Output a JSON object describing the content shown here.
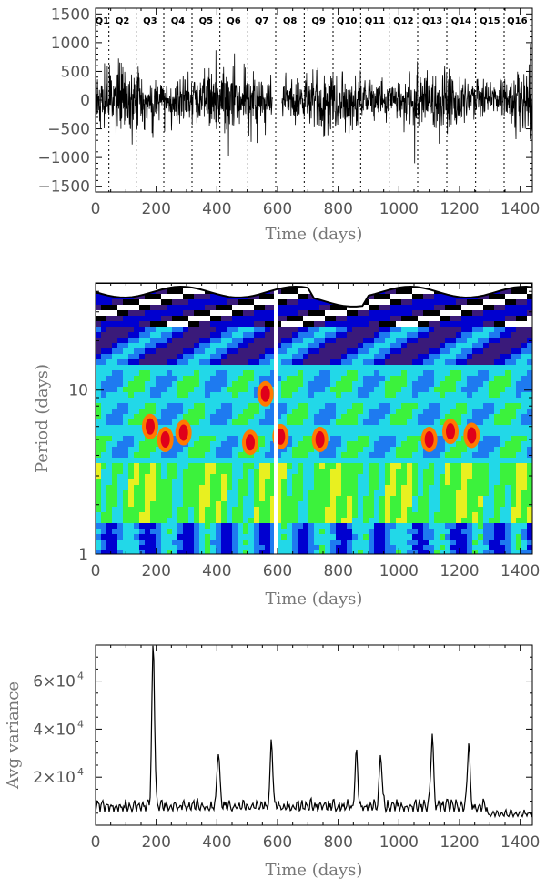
{
  "chart_data": [
    {
      "type": "line",
      "xlabel": "Time (days)",
      "ylabel": "",
      "xlim": [
        0,
        1440
      ],
      "ylim": [
        -1600,
        1600
      ],
      "xticks": [
        "0",
        "200",
        "400",
        "600",
        "800",
        "1000",
        "1200",
        "1400"
      ],
      "yticks": [
        "1500",
        "1000",
        "500",
        "0",
        "−500",
        "−1000",
        "−1500"
      ],
      "quarters": [
        "Q1",
        "Q2",
        "Q3",
        "Q4",
        "Q5",
        "Q6",
        "Q7",
        "Q8",
        "Q9",
        "Q10",
        "Q11",
        "Q12",
        "Q13",
        "Q14",
        "Q15",
        "Q16"
      ],
      "quarter_boundaries": [
        44,
        134,
        225,
        318,
        410,
        502,
        594,
        688,
        783,
        874,
        968,
        1062,
        1158,
        1253,
        1347,
        1433
      ],
      "series_color": "#000000"
    },
    {
      "type": "heatmap",
      "xlabel": "Time (days)",
      "ylabel": "Period (days)",
      "xlim": [
        0,
        1440
      ],
      "ylim": [
        1,
        45
      ],
      "yscale": "log",
      "xticks": [
        "0",
        "200",
        "400",
        "600",
        "800",
        "1000",
        "1200",
        "1400"
      ],
      "yticks": [
        "1",
        "10"
      ],
      "colormap": [
        "#ffffff",
        "#000000",
        "#3a1a7a",
        "#0000d0",
        "#1e7af0",
        "#22d8e8",
        "#3cf23c",
        "#e8f020",
        "#ff7a00",
        "#e0001a"
      ]
    },
    {
      "type": "line",
      "xlabel": "Time (days)",
      "ylabel": "Avg variance",
      "xlim": [
        0,
        1440
      ],
      "ylim": [
        0,
        75000
      ],
      "xticks": [
        "0",
        "200",
        "400",
        "600",
        "800",
        "1000",
        "1200",
        "1400"
      ],
      "yticks": [
        {
          "mantissa": "2×10",
          "exp": "4",
          "value": 20000
        },
        {
          "mantissa": "4×10",
          "exp": "4",
          "value": 40000
        },
        {
          "mantissa": "6×10",
          "exp": "4",
          "value": 60000
        }
      ],
      "peaks": [
        {
          "x": 190,
          "y": 74000
        },
        {
          "x": 580,
          "y": 33000
        },
        {
          "x": 1110,
          "y": 36000
        },
        {
          "x": 1230,
          "y": 31000
        },
        {
          "x": 405,
          "y": 29000
        },
        {
          "x": 860,
          "y": 28000
        },
        {
          "x": 940,
          "y": 28000
        }
      ],
      "series_color": "#000000"
    }
  ]
}
